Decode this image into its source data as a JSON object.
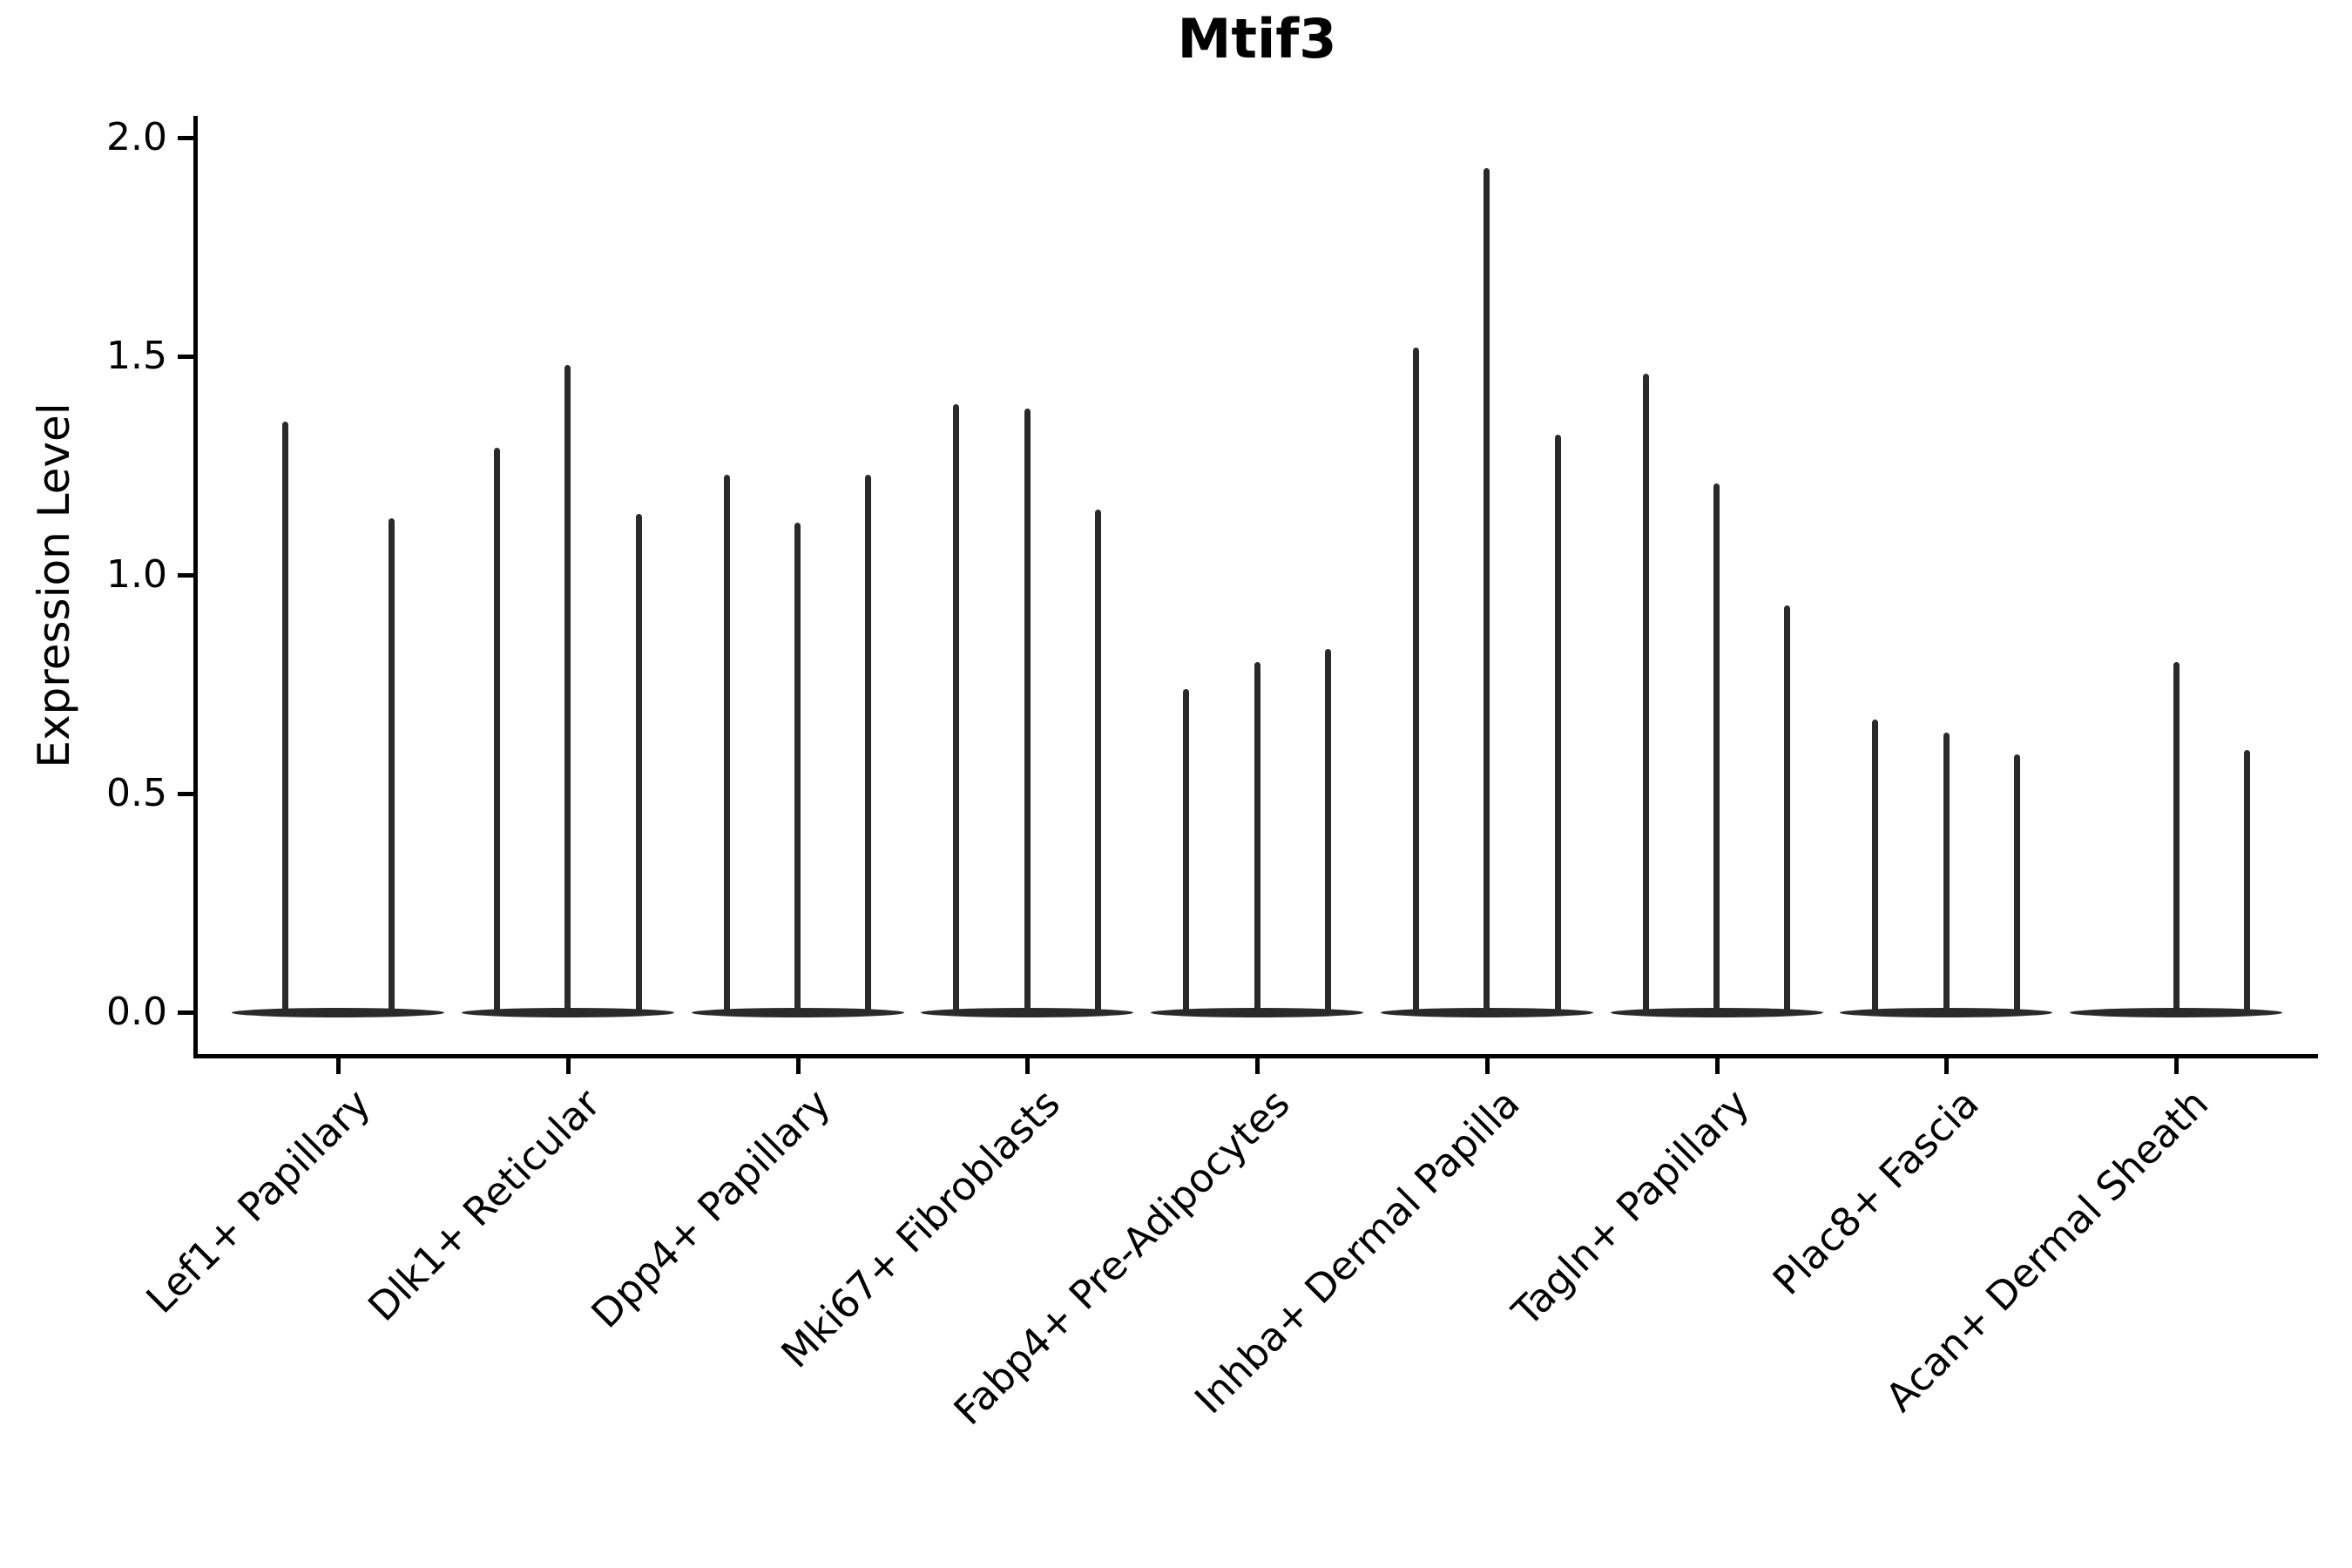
{
  "chart_data": {
    "type": "violin",
    "title": "Mtif3",
    "ylabel": "Expression Level",
    "xlabel": "",
    "ylim": [
      0.0,
      2.0
    ],
    "yticks": [
      "0.0",
      "0.5",
      "1.0",
      "1.5",
      "2.0"
    ],
    "grid": false,
    "legend": "none",
    "spines": [
      "left",
      "bottom"
    ],
    "violin_color": "#2a2a2a",
    "axis_color": "#000000",
    "categories": [
      {
        "label": "Lef1+ Papillary",
        "violin_max_values": [
          1.35,
          1.13
        ]
      },
      {
        "label": "Dlk1+ Reticular",
        "violin_max_values": [
          1.29,
          1.48,
          1.14
        ]
      },
      {
        "label": "Dpp4+ Papillary",
        "violin_max_values": [
          1.23,
          1.12,
          1.23
        ]
      },
      {
        "label": "Mki67+ Fibroblasts",
        "violin_max_values": [
          1.39,
          1.38,
          1.15
        ]
      },
      {
        "label": "Fabp4+ Pre-Adipocytes",
        "violin_max_values": [
          0.74,
          0.8,
          0.83
        ]
      },
      {
        "label": "Inhba+ Dermal Papilla",
        "violin_max_values": [
          1.52,
          1.93,
          1.32
        ]
      },
      {
        "label": "Tagln+ Papillary",
        "violin_max_values": [
          1.46,
          1.21,
          0.93
        ]
      },
      {
        "label": "Plac8+ Fascia",
        "violin_max_values": [
          0.67,
          0.64,
          0.59
        ]
      },
      {
        "label": "Acan+ Dermal Sheath",
        "violin_max_values": [
          0.0,
          0.8,
          0.6
        ]
      }
    ]
  }
}
